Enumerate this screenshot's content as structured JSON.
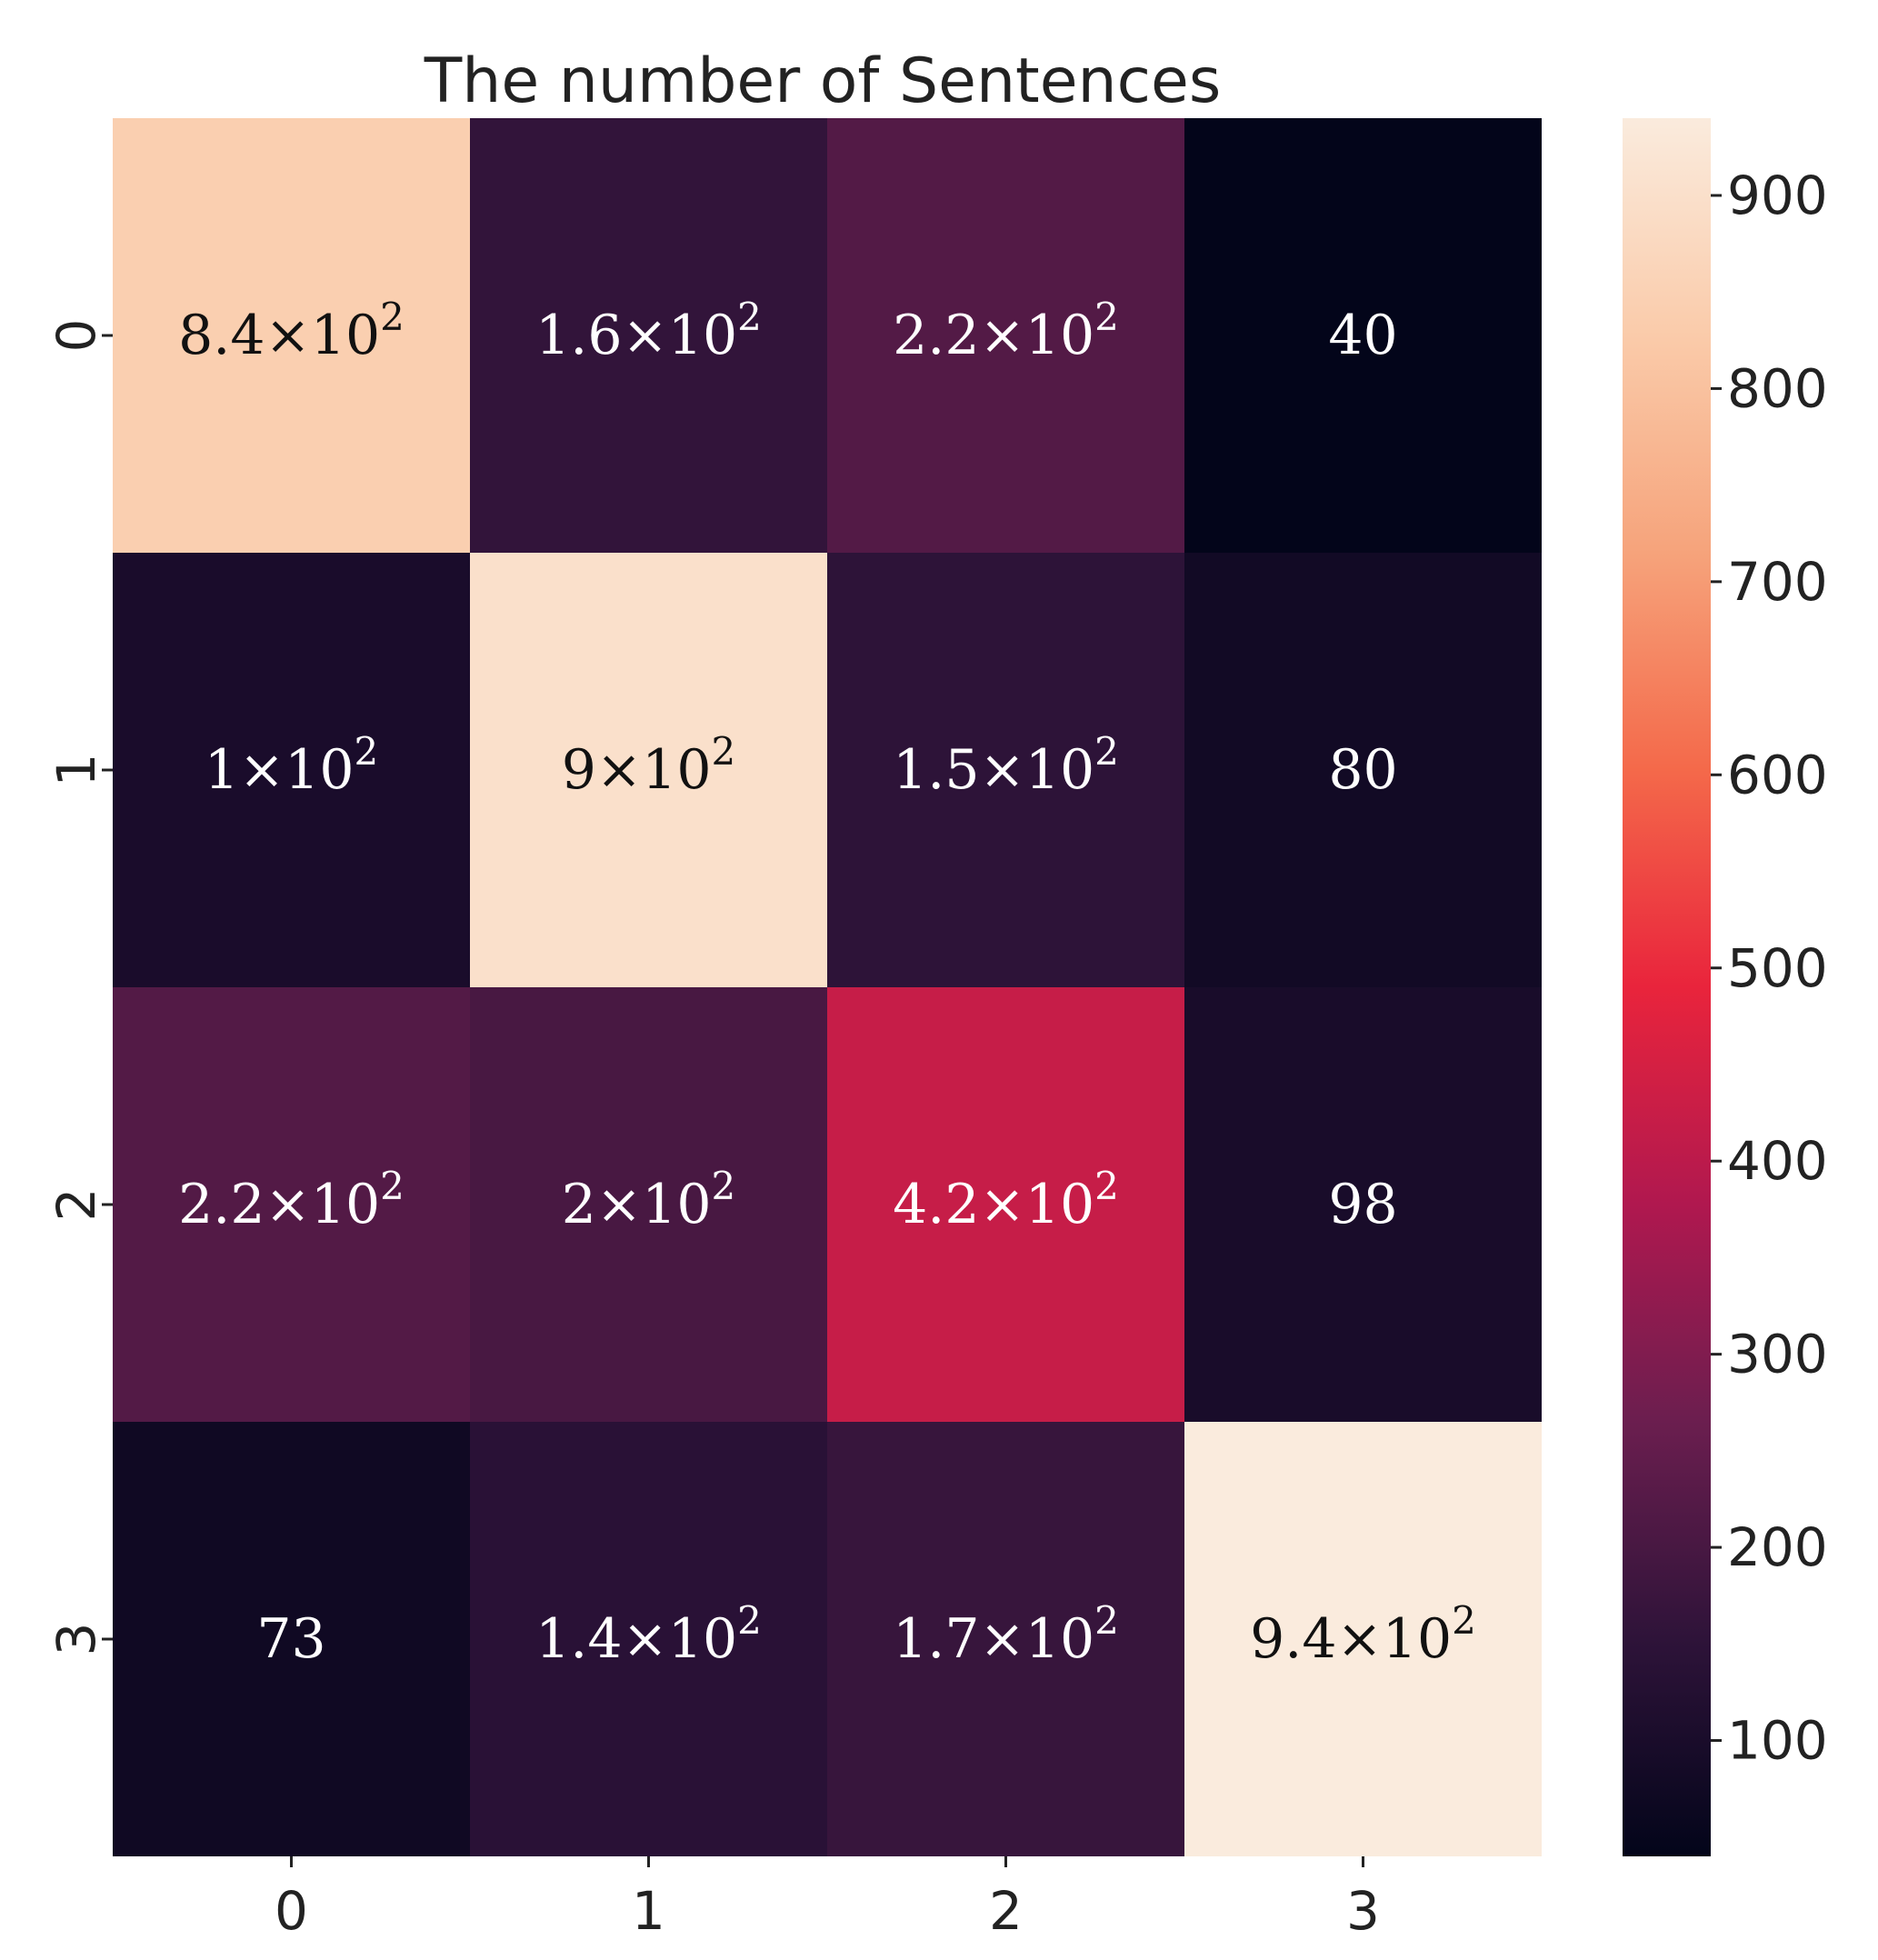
{
  "chart_data": {
    "type": "heatmap",
    "title": "The number of Sentences",
    "row_labels": [
      "0",
      "1",
      "2",
      "3"
    ],
    "col_labels": [
      "0",
      "1",
      "2",
      "3"
    ],
    "values": [
      [
        840,
        160,
        220,
        40
      ],
      [
        100,
        900,
        150,
        80
      ],
      [
        220,
        200,
        420,
        98
      ],
      [
        73,
        140,
        170,
        940
      ]
    ],
    "cell_labels": [
      [
        {
          "base": "8.4×10",
          "exp": "2"
        },
        {
          "base": "1.6×10",
          "exp": "2"
        },
        {
          "base": "2.2×10",
          "exp": "2"
        },
        {
          "base": "40",
          "exp": ""
        }
      ],
      [
        {
          "base": "1×10",
          "exp": "2"
        },
        {
          "base": "9×10",
          "exp": "2"
        },
        {
          "base": "1.5×10",
          "exp": "2"
        },
        {
          "base": "80",
          "exp": ""
        }
      ],
      [
        {
          "base": "2.2×10",
          "exp": "2"
        },
        {
          "base": "2×10",
          "exp": "2"
        },
        {
          "base": "4.2×10",
          "exp": "2"
        },
        {
          "base": "98",
          "exp": ""
        }
      ],
      [
        {
          "base": "73",
          "exp": ""
        },
        {
          "base": "1.4×10",
          "exp": "2"
        },
        {
          "base": "1.7×10",
          "exp": "2"
        },
        {
          "base": "9.4×10",
          "exp": "2"
        }
      ]
    ],
    "colorbar": {
      "range": [
        40,
        940
      ],
      "ticks": [
        100,
        200,
        300,
        400,
        500,
        600,
        700,
        800,
        900
      ]
    },
    "colormap": "rocket",
    "colormap_stops": [
      "#03051a",
      "#2e1339",
      "#6b1e4f",
      "#b0184f",
      "#e9243c",
      "#f4694a",
      "#f6a37b",
      "#facbaa",
      "#faebdd"
    ]
  }
}
